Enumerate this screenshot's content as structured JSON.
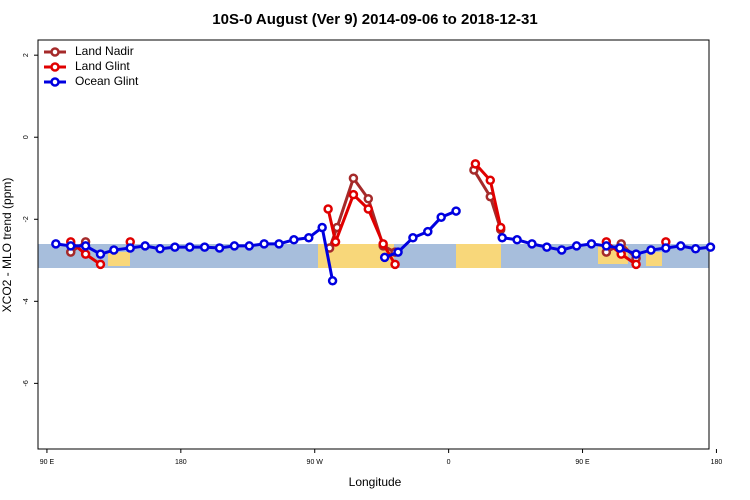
{
  "chart_data": {
    "type": "line",
    "title": "10S-0 August (Ver 9)   2014-09-06 to 2018-12-31",
    "x_label": "Longitude",
    "y_label": "XCO2 - MLO trend (ppm)",
    "xlim": [
      84,
      535
    ],
    "ylim": [
      -7.6,
      2.37
    ],
    "xticks": [
      {
        "value": 90,
        "label": "90 E"
      },
      180,
      {
        "value": 270,
        "label": "90 W"
      },
      {
        "value": 360,
        "label": "0"
      },
      {
        "value": 450,
        "label": "90 E"
      },
      {
        "value": 540,
        "label": "180"
      }
    ],
    "yticks": [
      2,
      0,
      -2,
      -4,
      -6
    ],
    "legend": "top-left",
    "series": [
      {
        "name": "Land Nadir",
        "color": "#a52a2a",
        "x": [
          106,
          116,
          null,
          280,
          285,
          296,
          306,
          316,
          324,
          null,
          377,
          388,
          395,
          null,
          466,
          476,
          486
        ],
        "values": [
          -2.8,
          -2.55,
          null,
          -2.7,
          -2.2,
          -1.0,
          -1.5,
          -2.65,
          -2.8,
          null,
          -0.8,
          -1.45,
          -2.25,
          null,
          -2.8,
          -2.6,
          -2.95
        ]
      },
      {
        "name": "Land Glint",
        "color": "#e00000",
        "x": [
          106,
          116,
          126,
          null,
          146,
          null,
          279,
          284,
          296,
          306,
          316,
          324,
          null,
          378,
          388,
          395,
          null,
          466,
          476,
          486,
          null,
          506
        ],
        "values": [
          -2.55,
          -2.85,
          -3.1,
          null,
          -2.55,
          null,
          -1.75,
          -2.55,
          -1.4,
          -1.75,
          -2.6,
          -3.1,
          null,
          -0.65,
          -1.05,
          -2.2,
          null,
          -2.55,
          -2.85,
          -3.1,
          null,
          -2.55
        ]
      },
      {
        "name": "Ocean Glint",
        "color": "#0000e0",
        "x": [
          96,
          106,
          116,
          126,
          135,
          146,
          156,
          166,
          176,
          186,
          196,
          206,
          216,
          226,
          236,
          246,
          256,
          266,
          275,
          282,
          null,
          317,
          326,
          336,
          346,
          355,
          365,
          null,
          396,
          406,
          416,
          426,
          436,
          446,
          456,
          466,
          475,
          486,
          496,
          506,
          516,
          526,
          536
        ],
        "values": [
          -2.6,
          -2.65,
          -2.65,
          -2.85,
          -2.75,
          -2.7,
          -2.65,
          -2.72,
          -2.68,
          -2.68,
          -2.68,
          -2.7,
          -2.65,
          -2.65,
          -2.6,
          -2.6,
          -2.5,
          -2.45,
          -2.2,
          -3.5,
          null,
          -2.93,
          -2.8,
          -2.45,
          -2.3,
          -1.95,
          -1.8,
          null,
          -2.45,
          -2.5,
          -2.6,
          -2.68,
          -2.75,
          -2.65,
          -2.6,
          -2.65,
          -2.7,
          -2.85,
          -2.75,
          -2.7,
          -2.65,
          -2.72,
          -2.68
        ]
      }
    ]
  }
}
